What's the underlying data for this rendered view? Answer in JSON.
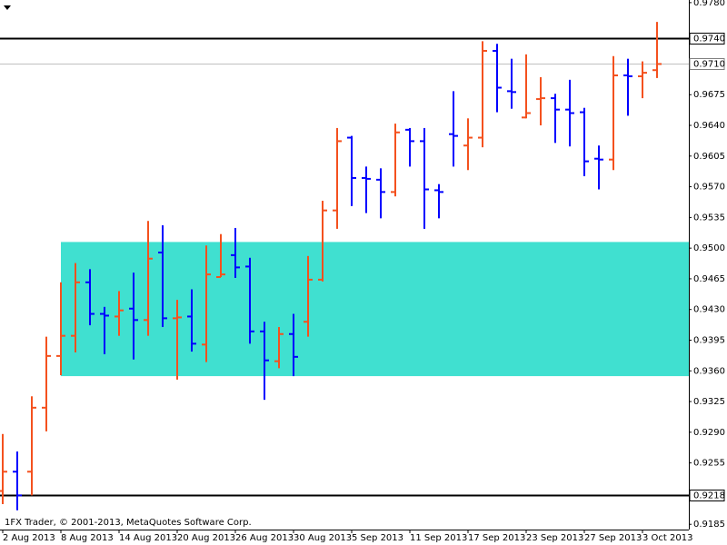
{
  "chart_data": {
    "type": "ohlc",
    "footer": "1FX Trader, © 2001-2013, MetaQuotes Software Corp.",
    "categories": [
      "2 Aug 2013",
      null,
      null,
      null,
      "8 Aug 2013",
      null,
      null,
      null,
      "14 Aug 2013",
      null,
      null,
      null,
      "20 Aug 2013",
      null,
      null,
      null,
      "26 Aug 2013",
      null,
      null,
      null,
      "30 Aug 2013",
      null,
      null,
      null,
      "5 Sep 2013",
      null,
      null,
      null,
      "11 Sep 2013",
      null,
      null,
      null,
      "17 Sep 2013",
      null,
      null,
      null,
      "23 Sep 2013",
      null,
      null,
      null,
      "27 Sep 2013",
      null,
      null,
      null,
      "3 Oct 2013",
      null
    ],
    "open": [
      0.9223,
      0.9245,
      0.9245,
      0.9318,
      0.9377,
      0.94,
      0.9461,
      0.9425,
      0.9422,
      0.9431,
      0.9418,
      0.9495,
      0.942,
      0.9422,
      0.939,
      0.9467,
      0.9492,
      0.9479,
      0.9405,
      0.9371,
      0.9402,
      0.9416,
      0.9464,
      0.9543,
      0.9626,
      0.958,
      0.9578,
      0.9564,
      0.9635,
      0.9622,
      0.9566,
      0.963,
      0.9617,
      0.9626,
      0.9725,
      0.9679,
      0.9649,
      0.967,
      0.9671,
      0.9658,
      0.9655,
      0.9602,
      0.9601,
      0.9697,
      0.9696,
      0.9703
    ],
    "high": [
      0.9288,
      0.9268,
      0.9331,
      0.9399,
      0.9461,
      0.9483,
      0.9476,
      0.9433,
      0.9451,
      0.9472,
      0.9531,
      0.9526,
      0.9441,
      0.9453,
      0.9503,
      0.9516,
      0.9523,
      0.9489,
      0.9416,
      0.941,
      0.9425,
      0.9491,
      0.9554,
      0.9637,
      0.9628,
      0.9593,
      0.9591,
      0.9642,
      0.9637,
      0.9637,
      0.9573,
      0.9679,
      0.9648,
      0.9736,
      0.9733,
      0.9716,
      0.9721,
      0.9695,
      0.9676,
      0.9692,
      0.966,
      0.9617,
      0.9719,
      0.9716,
      0.9713,
      0.9758
    ],
    "low": [
      0.9208,
      0.9201,
      0.9218,
      0.9291,
      0.9355,
      0.9381,
      0.9412,
      0.9379,
      0.94,
      0.9373,
      0.94,
      0.941,
      0.935,
      0.9382,
      0.937,
      0.9467,
      0.9466,
      0.9391,
      0.9327,
      0.9363,
      0.9354,
      0.9399,
      0.9462,
      0.9522,
      0.9548,
      0.954,
      0.9534,
      0.9559,
      0.9593,
      0.9522,
      0.9534,
      0.9593,
      0.9589,
      0.9615,
      0.9655,
      0.9659,
      0.9648,
      0.964,
      0.962,
      0.9616,
      0.9582,
      0.9567,
      0.9589,
      0.9651,
      0.9671,
      0.9694
    ],
    "close": [
      0.9245,
      0.9218,
      0.9318,
      0.9377,
      0.94,
      0.9461,
      0.9425,
      0.9423,
      0.9429,
      0.9418,
      0.9488,
      0.942,
      0.9421,
      0.9391,
      0.947,
      0.947,
      0.9478,
      0.9405,
      0.9372,
      0.9402,
      0.9376,
      0.9464,
      0.9543,
      0.9622,
      0.958,
      0.9579,
      0.9564,
      0.9632,
      0.9622,
      0.9567,
      0.9564,
      0.9628,
      0.9626,
      0.9725,
      0.9683,
      0.9678,
      0.9654,
      0.9671,
      0.9658,
      0.9654,
      0.9599,
      0.9601,
      0.9697,
      0.9696,
      0.97,
      0.971
    ],
    "up_color": "#f4511e",
    "down_color": "#0000ff",
    "ylim": [
      0.9179,
      0.9783
    ],
    "yticks": [
      {
        "value": 0.978,
        "label": "0.9780"
      },
      {
        "value": 0.9675,
        "label": "0.9675"
      },
      {
        "value": 0.964,
        "label": "0.9640"
      },
      {
        "value": 0.9605,
        "label": "0.9605"
      },
      {
        "value": 0.957,
        "label": "0.9570"
      },
      {
        "value": 0.9535,
        "label": "0.9535"
      },
      {
        "value": 0.95,
        "label": "0.9500"
      },
      {
        "value": 0.9465,
        "label": "0.9465"
      },
      {
        "value": 0.943,
        "label": "0.9430"
      },
      {
        "value": 0.9395,
        "label": "0.9395"
      },
      {
        "value": 0.936,
        "label": "0.9360"
      },
      {
        "value": 0.9325,
        "label": "0.9325"
      },
      {
        "value": 0.929,
        "label": "0.9290"
      },
      {
        "value": 0.9255,
        "label": "0.9255"
      },
      {
        "value": 0.9185,
        "label": "0.9185"
      }
    ],
    "hlines": [
      {
        "value": 0.974,
        "label": "0.9740",
        "color": "#000000"
      },
      {
        "value": 0.971,
        "label": "0.9710",
        "color": "#c0c0c0"
      },
      {
        "value": 0.9218,
        "label": "0.9218",
        "color": "#000000"
      }
    ],
    "rectangle": {
      "x_start": "8 Aug 2013",
      "top": 0.9507,
      "bottom": 0.9354,
      "color": "#40e0d0"
    }
  }
}
